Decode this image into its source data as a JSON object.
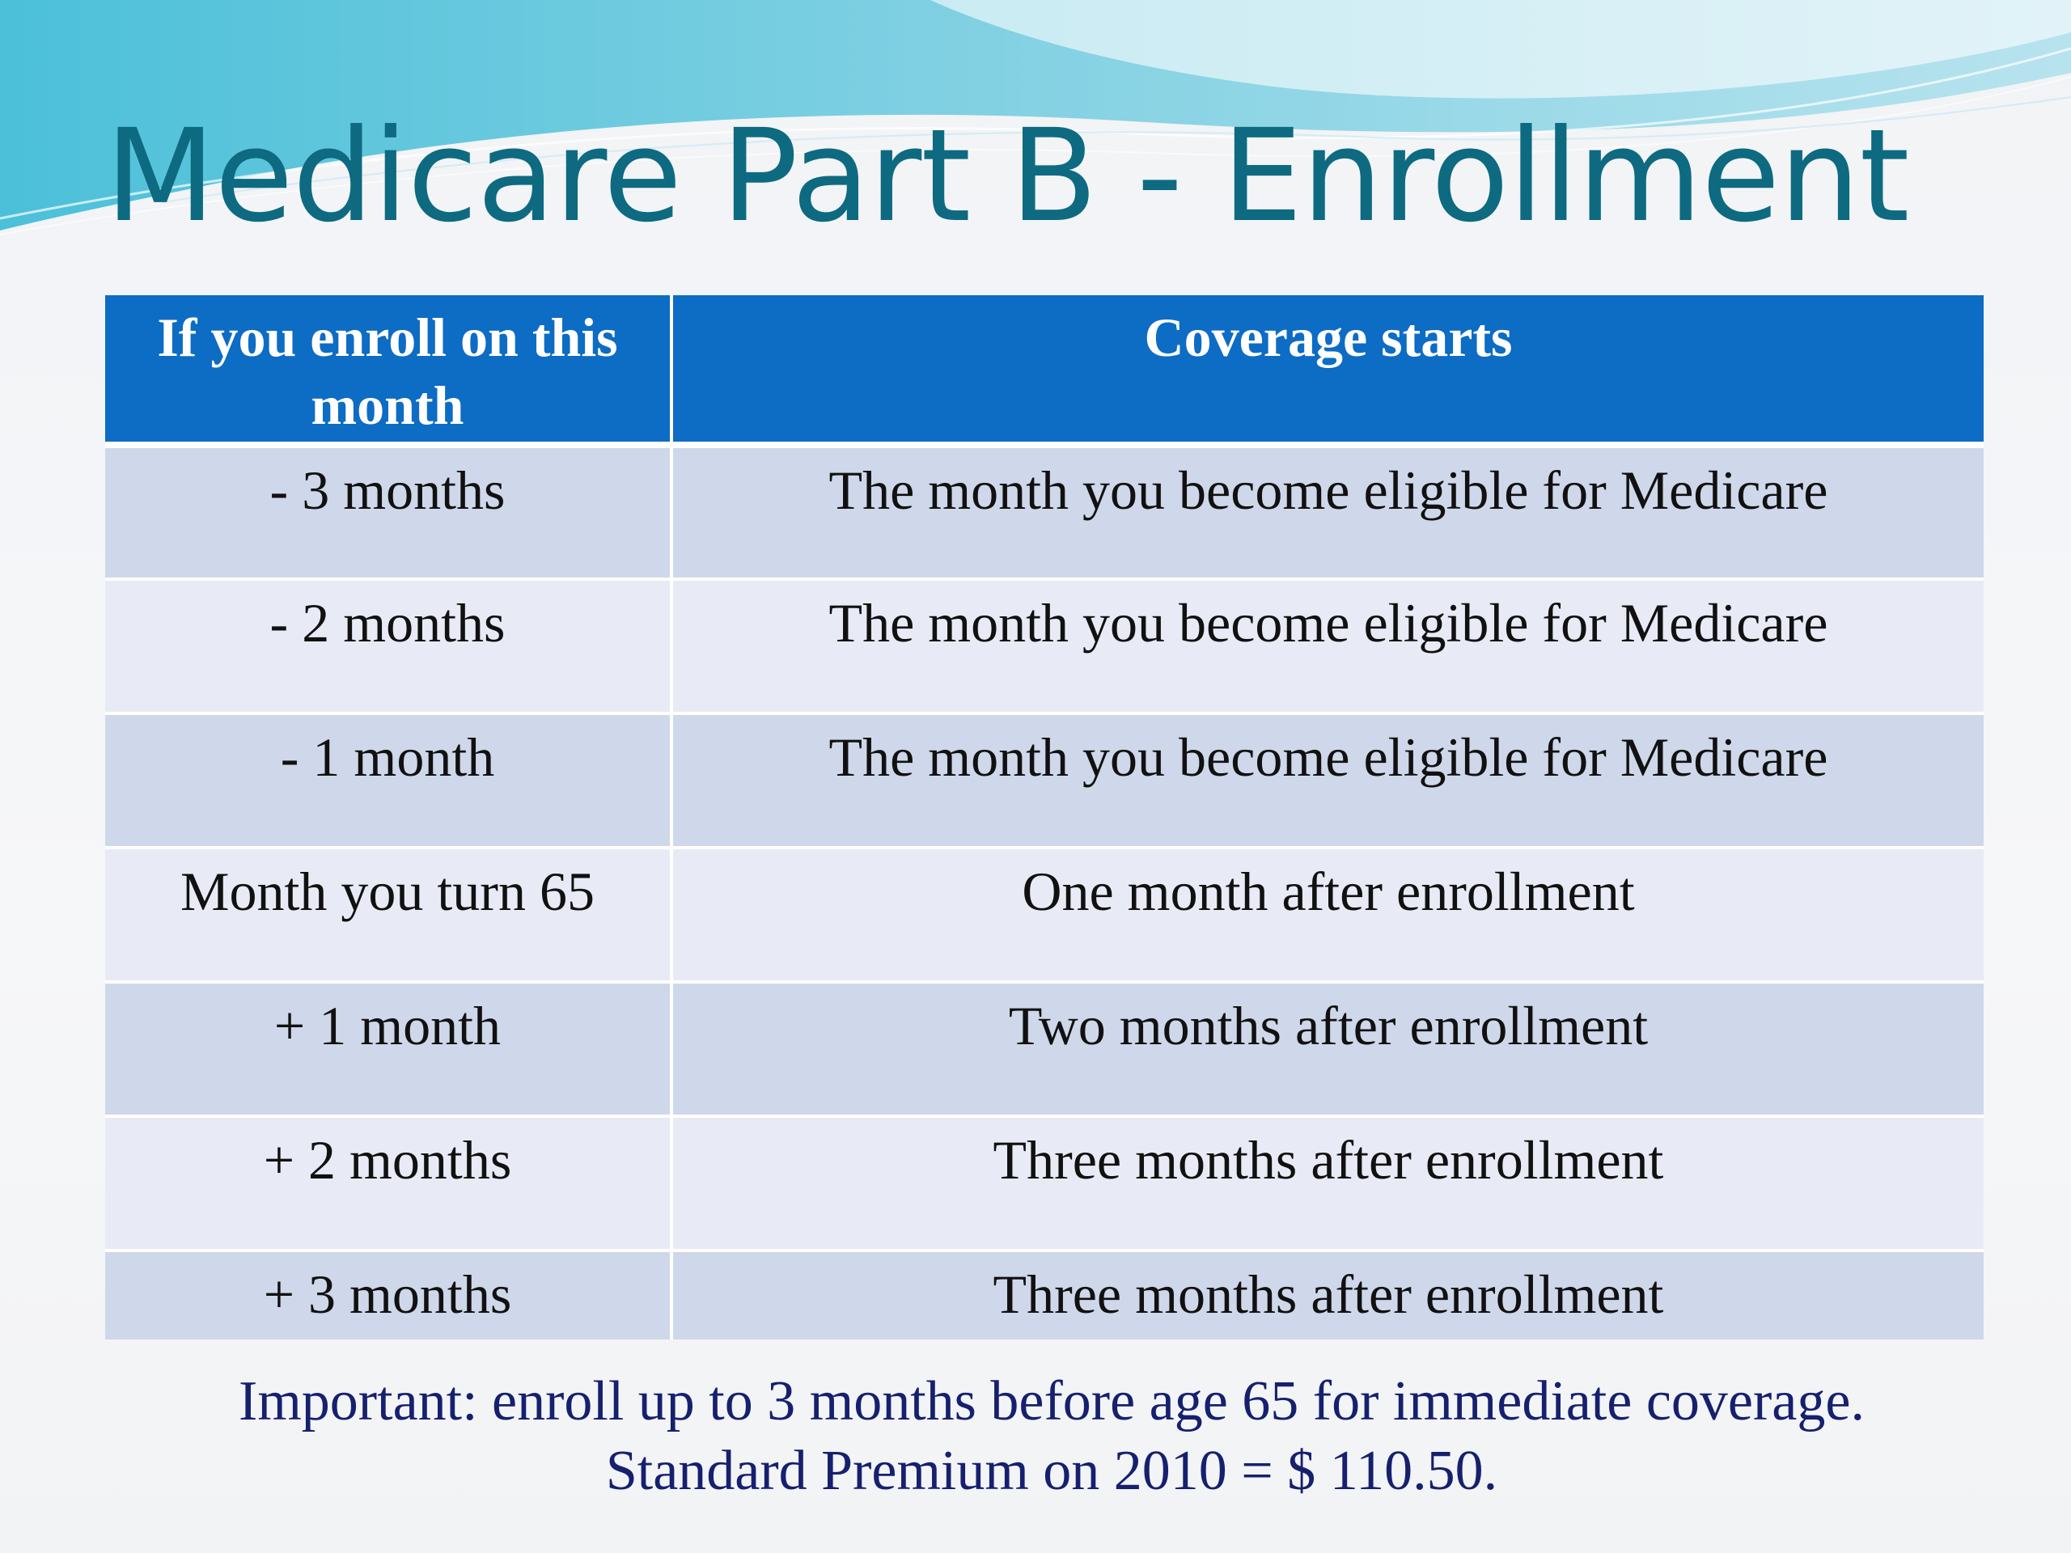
{
  "slide": {
    "title": "Medicare Part B - Enrollment",
    "colors": {
      "title": "#0e6a80",
      "header_bg": "#0d6cc4",
      "row_dark": "#cfd8ea",
      "row_light": "#e8ebf5",
      "note_text": "#16206e",
      "wave_teal": "#5fc3d8",
      "wave_light": "#a8dceb"
    },
    "table": {
      "headers": [
        "If you enroll on this month",
        "Coverage starts"
      ],
      "rows": [
        [
          "- 3 months",
          "The month you become eligible for Medicare"
        ],
        [
          "- 2 months",
          "The month you become eligible for Medicare"
        ],
        [
          "- 1 month",
          "The month you become eligible for Medicare"
        ],
        [
          "Month you turn 65",
          "One month after enrollment"
        ],
        [
          "+ 1 month",
          "Two months after enrollment"
        ],
        [
          "+ 2 months",
          "Three months after enrollment"
        ],
        [
          "+ 3 months",
          "Three months after enrollment"
        ]
      ]
    },
    "notes": [
      "Important: enroll up to 3 months before age 65 for immediate coverage.",
      "Standard Premium on 2010 = $ 110.50."
    ]
  }
}
